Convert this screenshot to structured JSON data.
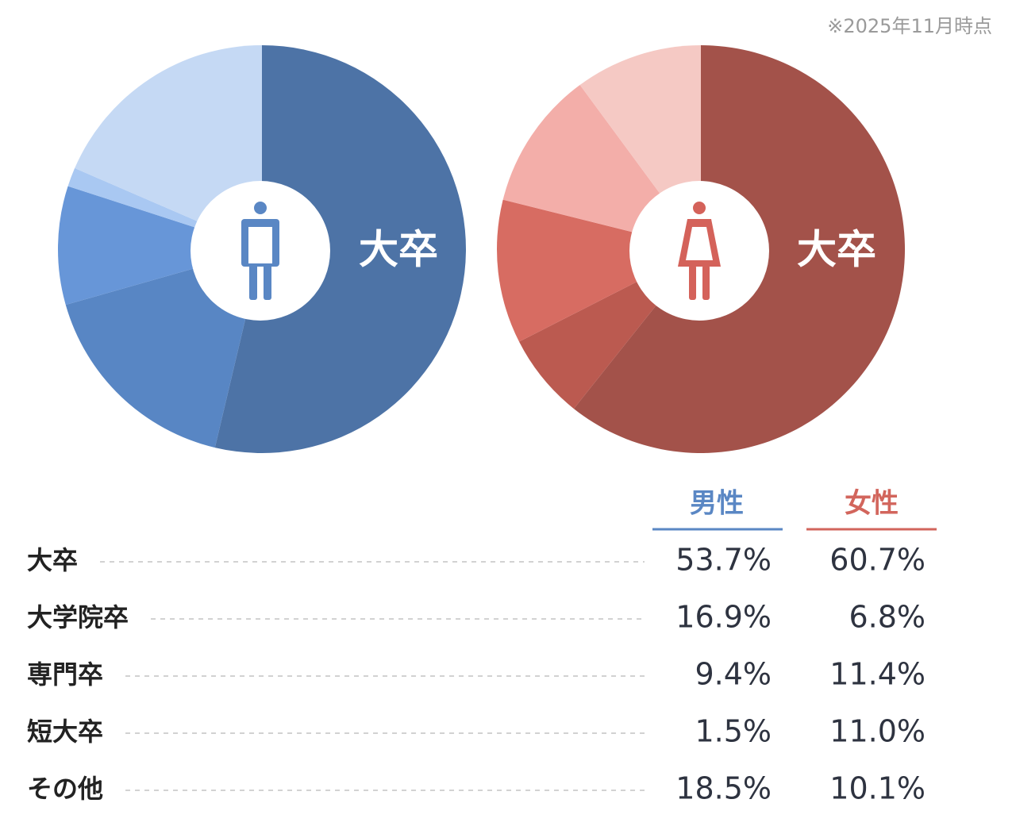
{
  "note": "※2025年11月時点",
  "chart_data": [
    {
      "type": "pie",
      "name": "男性",
      "center_label": "大卒",
      "categories": [
        "大卒",
        "大学院卒",
        "専門卒",
        "短大卒",
        "その他"
      ],
      "values": [
        53.7,
        16.9,
        9.4,
        1.5,
        18.5
      ],
      "value_labels": [
        "53.7%",
        "16.9%",
        "9.4%",
        "1.5%",
        "18.5%"
      ],
      "colors": [
        "#4d73a6",
        "#5886c4",
        "#6796d8",
        "#a9c8f2",
        "#c5d9f4"
      ]
    },
    {
      "type": "pie",
      "name": "女性",
      "center_label": "大卒",
      "categories": [
        "大卒",
        "大学院卒",
        "専門卒",
        "短大卒",
        "その他"
      ],
      "values": [
        60.7,
        6.8,
        11.4,
        11.0,
        10.1
      ],
      "value_labels": [
        "60.7%",
        "6.8%",
        "11.4%",
        "11.0%",
        "10.1%"
      ],
      "colors": [
        "#a3524a",
        "#bb5a50",
        "#d76c62",
        "#f3aea9",
        "#f5c9c4"
      ]
    }
  ]
}
